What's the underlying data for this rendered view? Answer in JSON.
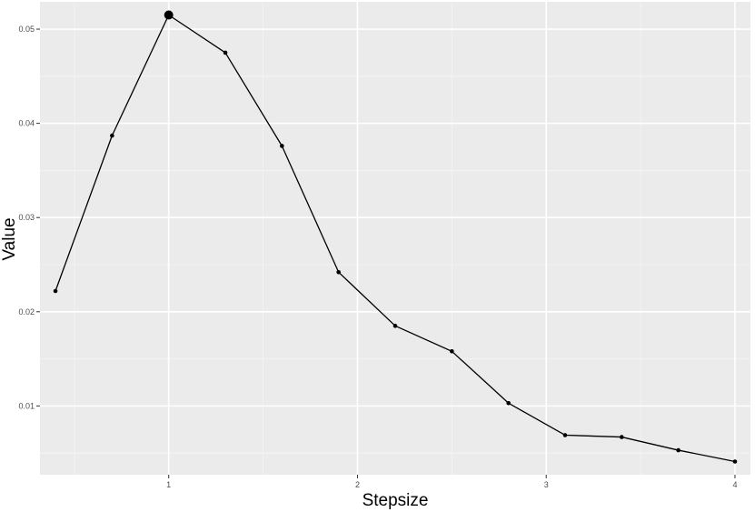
{
  "chart_data": {
    "type": "line",
    "title": "",
    "xlabel": "Stepsize",
    "ylabel": "Value",
    "x": [
      0.4,
      0.7,
      1.0,
      1.3,
      1.6,
      1.9,
      2.2,
      2.5,
      2.8,
      3.1,
      3.4,
      3.7,
      4.0
    ],
    "series": [
      {
        "values": [
          0.0222,
          0.0387,
          0.0515,
          0.0475,
          0.0376,
          0.0242,
          0.0185,
          0.0158,
          0.0103,
          0.0069,
          0.0067,
          0.0053,
          0.0041
        ]
      }
    ],
    "highlight_index": 2,
    "xlim": [
      0.318,
      4.082
    ],
    "ylim": [
      0.0027,
      0.0529
    ],
    "xticks": [
      1,
      2,
      3,
      4
    ],
    "xtick_labels": [
      "1",
      "2",
      "3",
      "4"
    ],
    "yticks": [
      0.01,
      0.02,
      0.03,
      0.04,
      0.05
    ],
    "ytick_labels": [
      "0.01",
      "0.02",
      "0.03",
      "0.04",
      "0.05"
    ],
    "grid": true,
    "legend": "none",
    "colors": {
      "panel_background": "#ebebeb",
      "grid_major": "#ffffff",
      "grid_minor": "#f5f5f5",
      "line": "#000000",
      "point": "#000000",
      "tick_text": "#4d4d4d",
      "tick_mark": "#333333"
    }
  }
}
